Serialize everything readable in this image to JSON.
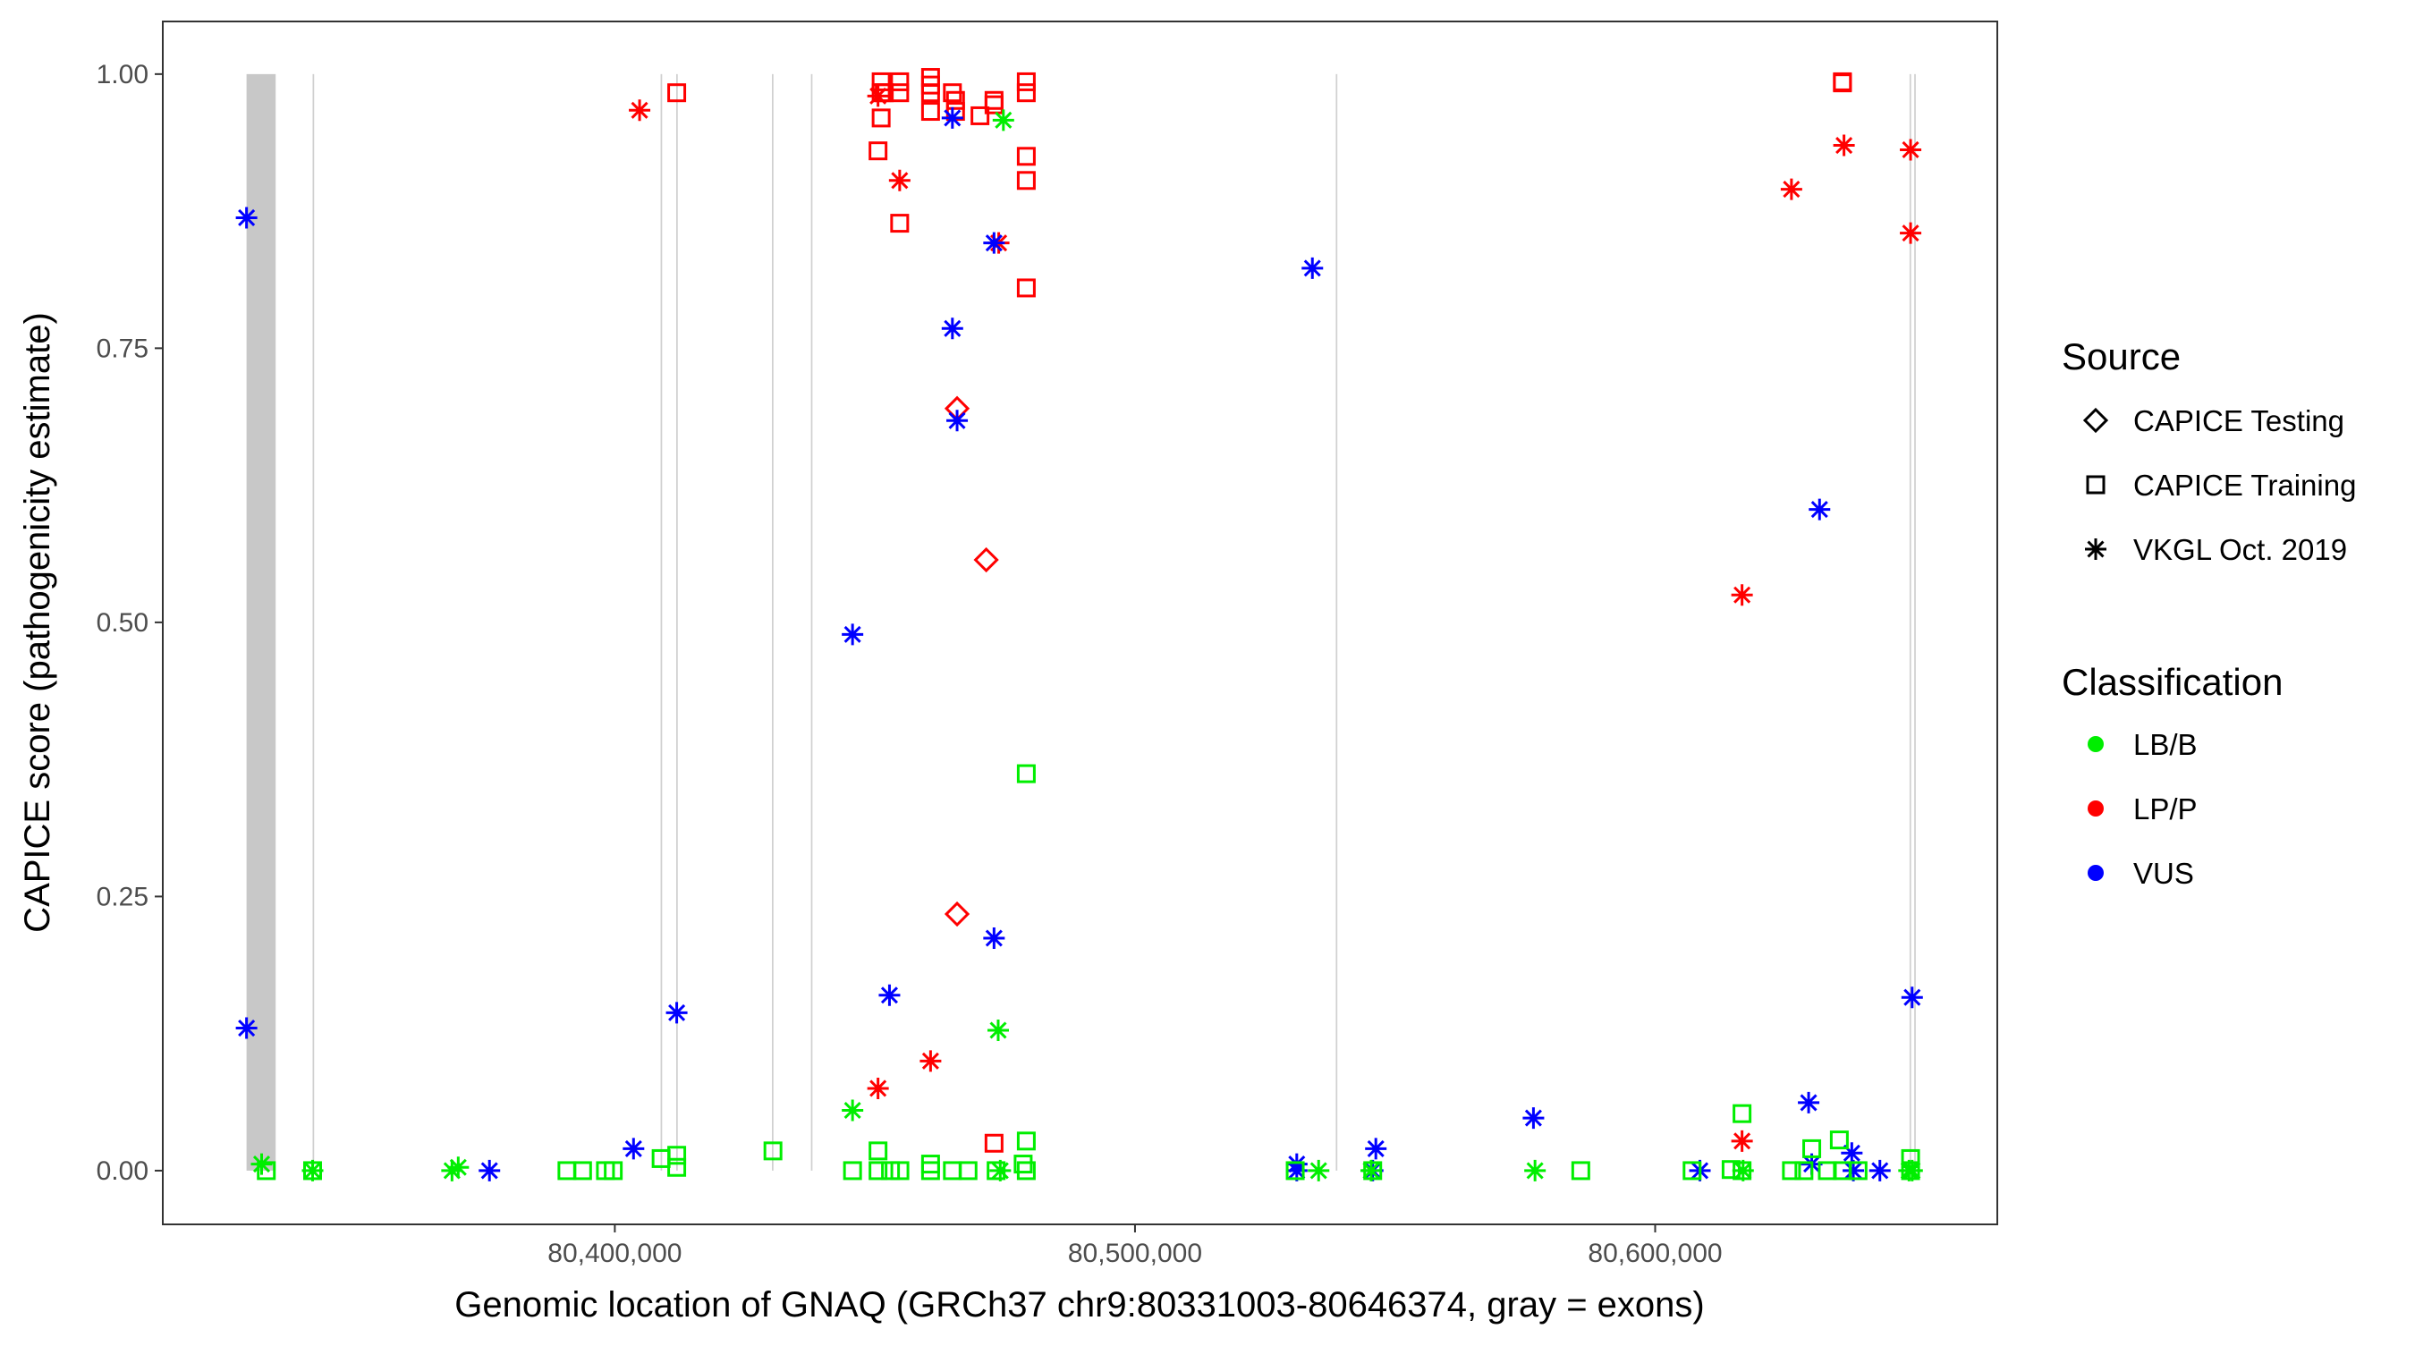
{
  "chart_data": {
    "type": "scatter",
    "title": "",
    "xlabel": "Genomic location of GNAQ (GRCh37 chr9:80331003-80646374, gray = exons)",
    "ylabel": "CAPICE score (pathogenicity estimate)",
    "xlim": [
      80313100,
      80665770
    ],
    "ylim": [
      -0.049,
      1.048
    ],
    "xticks": [
      80400000,
      80500000,
      80600000
    ],
    "xtick_labels": [
      "80,400,000",
      "80,500,000",
      "80,600,000"
    ],
    "yticks": [
      0,
      0.25,
      0.5,
      0.75,
      1.0
    ],
    "ytick_labels": [
      "0.00",
      "0.25",
      "0.50",
      "0.75",
      "1.00"
    ],
    "grid": false,
    "legend_placement": "right",
    "exons": [
      [
        80329200,
        80334800
      ],
      [
        80341900,
        80342200
      ],
      [
        80408800,
        80409100
      ],
      [
        80411800,
        80412100
      ],
      [
        80430200,
        80430500
      ],
      [
        80437700,
        80438000
      ],
      [
        80538600,
        80538900
      ],
      [
        80648900,
        80649200
      ],
      [
        80649800,
        80650100
      ]
    ],
    "legend": {
      "source_title": "Source",
      "sources": [
        {
          "name": "CAPICE Testing",
          "shape": "diamond"
        },
        {
          "name": "CAPICE Training",
          "shape": "square"
        },
        {
          "name": "VKGL Oct. 2019",
          "shape": "star"
        }
      ],
      "class_title": "Classification",
      "classes": [
        {
          "name": "LB/B",
          "color": "#00ee00"
        },
        {
          "name": "LP/P",
          "color": "#ff0000"
        },
        {
          "name": "VUS",
          "color": "#0000ff"
        }
      ]
    },
    "series": [
      {
        "source": "VKGL Oct. 2019",
        "class": "LP/P",
        "points": [
          [
            80404760,
            0.967
          ],
          [
            80450600,
            0.98
          ],
          [
            80454760,
            0.903
          ],
          [
            80473800,
            0.846
          ],
          [
            80460700,
            0.1
          ],
          [
            80450600,
            0.075
          ],
          [
            80616700,
            0.525
          ],
          [
            80616700,
            0.027
          ],
          [
            80626200,
            0.895
          ],
          [
            80636300,
            0.935
          ],
          [
            80649100,
            0.931
          ],
          [
            80649100,
            0.855
          ]
        ]
      },
      {
        "source": "CAPICE Training",
        "class": "LP/P",
        "points": [
          [
            80411900,
            0.983
          ],
          [
            80451200,
            0.993
          ],
          [
            80451200,
            0.983
          ],
          [
            80451200,
            0.96
          ],
          [
            80450600,
            0.93
          ],
          [
            80454760,
            0.864
          ],
          [
            80451800,
            0.983
          ],
          [
            80454760,
            0.993
          ],
          [
            80454760,
            0.983
          ],
          [
            80460700,
            0.997
          ],
          [
            80460700,
            0.99
          ],
          [
            80460700,
            0.983
          ],
          [
            80460700,
            0.966
          ],
          [
            80464900,
            0.983
          ],
          [
            80465500,
            0.976
          ],
          [
            80465500,
            0.966
          ],
          [
            80470200,
            0.962
          ],
          [
            80472900,
            0.976
          ],
          [
            80472900,
            0.972
          ],
          [
            80479100,
            0.993
          ],
          [
            80479100,
            0.983
          ],
          [
            80479100,
            0.925
          ],
          [
            80479100,
            0.903
          ],
          [
            80479100,
            0.805
          ],
          [
            80472900,
            0.025
          ],
          [
            80636000,
            0.993
          ],
          [
            80636000,
            0.992
          ]
        ]
      },
      {
        "source": "CAPICE Testing",
        "class": "LP/P",
        "points": [
          [
            80471400,
            0.557
          ],
          [
            80465800,
            0.695
          ],
          [
            80465800,
            0.234
          ]
        ]
      },
      {
        "source": "VKGL Oct. 2019",
        "class": "VUS",
        "points": [
          [
            80329200,
            0.869
          ],
          [
            80329200,
            0.13
          ],
          [
            80411900,
            0.144
          ],
          [
            80403600,
            0.02
          ],
          [
            80375900,
            0.0
          ],
          [
            80445700,
            0.489
          ],
          [
            80452800,
            0.16
          ],
          [
            80464900,
            0.96
          ],
          [
            80464900,
            0.768
          ],
          [
            80465800,
            0.684
          ],
          [
            80472900,
            0.846
          ],
          [
            80472900,
            0.212
          ],
          [
            80534100,
            0.823
          ],
          [
            80531100,
            0.006
          ],
          [
            80531100,
            0.0
          ],
          [
            80546300,
            0.02
          ],
          [
            80545700,
            0.0
          ],
          [
            80576600,
            0.048
          ],
          [
            80608600,
            0.0
          ],
          [
            80629500,
            0.062
          ],
          [
            80630100,
            0.006
          ],
          [
            80631600,
            0.603
          ],
          [
            80637800,
            0.016
          ],
          [
            80638100,
            0.0
          ],
          [
            80643200,
            0.0
          ],
          [
            80649400,
            0.158
          ]
        ]
      },
      {
        "source": "VKGL Oct. 2019",
        "class": "LB/B",
        "points": [
          [
            80332100,
            0.006
          ],
          [
            80341900,
            0.0
          ],
          [
            80368700,
            0.0
          ],
          [
            80369900,
            0.003
          ],
          [
            80445700,
            0.055
          ],
          [
            80473700,
            0.128
          ],
          [
            80474700,
            0.958
          ],
          [
            80474100,
            0.0
          ],
          [
            80535300,
            0.0
          ],
          [
            80545400,
            0.0
          ],
          [
            80576900,
            0.0
          ],
          [
            80616900,
            0.0
          ],
          [
            80648800,
            0.0
          ],
          [
            80649400,
            0.0
          ]
        ]
      },
      {
        "source": "CAPICE Training",
        "class": "LB/B",
        "points": [
          [
            80333000,
            0.0
          ],
          [
            80341900,
            0.0
          ],
          [
            80390800,
            0.0
          ],
          [
            80393800,
            0.0
          ],
          [
            80398200,
            0.0
          ],
          [
            80399700,
            0.0
          ],
          [
            80408900,
            0.011
          ],
          [
            80411900,
            0.014
          ],
          [
            80411900,
            0.003
          ],
          [
            80430400,
            0.018
          ],
          [
            80445700,
            0.0
          ],
          [
            80450600,
            0.018
          ],
          [
            80450600,
            0.0
          ],
          [
            80453000,
            0.0
          ],
          [
            80454800,
            0.0
          ],
          [
            80460700,
            0.006
          ],
          [
            80460700,
            0.0
          ],
          [
            80464900,
            0.0
          ],
          [
            80467900,
            0.0
          ],
          [
            80473300,
            0.0
          ],
          [
            80478500,
            0.006
          ],
          [
            80479100,
            0.027
          ],
          [
            80479100,
            0.0
          ],
          [
            80479100,
            0.362
          ],
          [
            80585700,
            0.0
          ],
          [
            80607100,
            0.0
          ],
          [
            80614600,
            0.001
          ],
          [
            80616700,
            0.052
          ],
          [
            80616700,
            0.0
          ],
          [
            80626200,
            0.0
          ],
          [
            80628600,
            0.0
          ],
          [
            80630100,
            0.02
          ],
          [
            80633100,
            0.0
          ],
          [
            80635400,
            0.028
          ],
          [
            80636000,
            0.0
          ],
          [
            80639000,
            0.0
          ],
          [
            80649100,
            0.011
          ],
          [
            80649100,
            0.0
          ],
          [
            80545700,
            0.0
          ],
          [
            80530800,
            0.0
          ]
        ]
      }
    ]
  }
}
